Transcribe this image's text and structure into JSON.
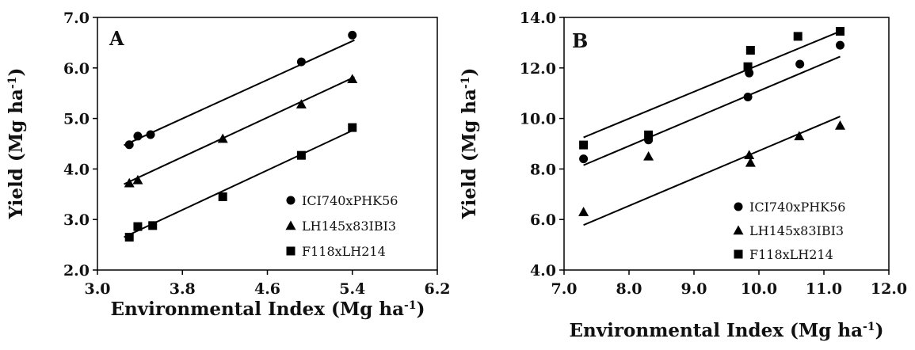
{
  "chart_data": [
    {
      "type": "scatter",
      "panel_label": "A",
      "xlabel": "Environmental Index (Mg ha",
      "xlabel_sup": "-1",
      "xlabel_end": ")",
      "ylabel": "Yield (Mg ha",
      "ylabel_sup": "-1",
      "ylabel_end": ")",
      "xlim": [
        3.0,
        6.2
      ],
      "ylim": [
        2.0,
        7.0
      ],
      "xticks": [
        3.0,
        3.8,
        4.6,
        5.4,
        6.2
      ],
      "xtick_labels": [
        "3.0",
        "3.8",
        "4.6",
        "5.4",
        "6.2"
      ],
      "yticks": [
        2.0,
        3.0,
        4.0,
        5.0,
        6.0,
        7.0
      ],
      "ytick_labels": [
        "2.0",
        "3.0",
        "4.0",
        "5.0",
        "6.0",
        "7.0"
      ],
      "grid": false,
      "legend_position": "bottom-right",
      "series": [
        {
          "name": "ICI740xPHK56",
          "marker": "circle",
          "x": [
            3.3,
            3.38,
            3.5,
            4.92,
            5.4
          ],
          "y": [
            4.48,
            4.65,
            4.68,
            6.12,
            6.65
          ],
          "fit": [
            [
              3.25,
              4.47
            ],
            [
              5.42,
              6.55
            ]
          ]
        },
        {
          "name": "LH145x83IBI3",
          "marker": "triangle",
          "x": [
            3.3,
            3.38,
            4.18,
            4.92,
            5.4
          ],
          "y": [
            3.72,
            3.78,
            4.6,
            5.28,
            5.78
          ],
          "fit": [
            [
              3.25,
              3.7
            ],
            [
              5.42,
              5.82
            ]
          ]
        },
        {
          "name": "F118xLH214",
          "marker": "square",
          "x": [
            3.3,
            3.38,
            3.52,
            4.18,
            4.92,
            5.4
          ],
          "y": [
            2.65,
            2.86,
            2.88,
            3.45,
            4.27,
            4.82
          ],
          "fit": [
            [
              3.25,
              2.65
            ],
            [
              5.42,
              4.78
            ]
          ]
        }
      ]
    },
    {
      "type": "scatter",
      "panel_label": "B",
      "xlabel": "Environmental Index (Mg ha",
      "xlabel_sup": "-1",
      "xlabel_end": ")",
      "ylabel": "Yield (Mg ha",
      "ylabel_sup": "-1",
      "ylabel_end": ")",
      "xlim": [
        7.0,
        12.0
      ],
      "ylim": [
        4.0,
        14.0
      ],
      "xticks": [
        7.0,
        8.0,
        9.0,
        10.0,
        11.0,
        12.0
      ],
      "xtick_labels": [
        "7.0",
        "8.0",
        "9.0",
        "10.0",
        "11.0",
        "12.0"
      ],
      "yticks": [
        4.0,
        6.0,
        8.0,
        10.0,
        12.0,
        14.0
      ],
      "ytick_labels": [
        "4.0",
        "6.0",
        "8.0",
        "10.0",
        "12.0",
        "14.0"
      ],
      "grid": false,
      "legend_position": "bottom-right",
      "series": [
        {
          "name": "ICI740xPHK56",
          "marker": "circle",
          "x": [
            7.3,
            8.3,
            9.83,
            9.85,
            10.63,
            11.25
          ],
          "y": [
            8.4,
            9.15,
            10.85,
            11.8,
            12.15,
            12.9
          ],
          "fit": [
            [
              7.3,
              8.15
            ],
            [
              11.25,
              12.45
            ]
          ]
        },
        {
          "name": "LH145x83IBI3",
          "marker": "triangle",
          "x": [
            7.3,
            8.3,
            9.85,
            9.87,
            10.62,
            11.25
          ],
          "y": [
            6.3,
            8.5,
            8.55,
            8.25,
            9.3,
            9.72
          ],
          "fit": [
            [
              7.3,
              5.78
            ],
            [
              11.25,
              10.08
            ]
          ]
        },
        {
          "name": "F118xLH214",
          "marker": "square",
          "x": [
            7.3,
            8.3,
            9.83,
            9.87,
            10.6,
            11.25
          ],
          "y": [
            8.95,
            9.35,
            12.05,
            12.7,
            13.25,
            13.45
          ],
          "fit": [
            [
              7.3,
              9.25
            ],
            [
              11.25,
              13.45
            ]
          ]
        }
      ]
    }
  ]
}
